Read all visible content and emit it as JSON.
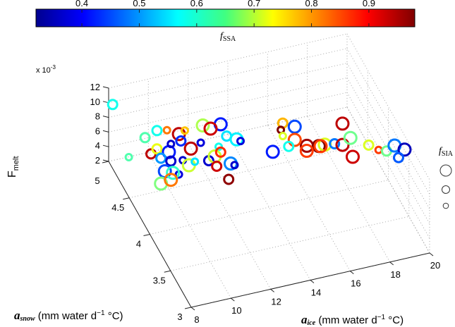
{
  "chart_data": {
    "type": "scatter",
    "projection": "3d",
    "title": "",
    "x": {
      "label_var": "a",
      "label_sub": "ice",
      "label_units": " (mm water d",
      "label_exp": "−1",
      "label_tail": " °C)",
      "range": [
        8,
        20
      ],
      "ticks": [
        "8",
        "10",
        "12",
        "14",
        "16",
        "18",
        "20"
      ],
      "tick_values": [
        8,
        10,
        12,
        14,
        16,
        18,
        20
      ]
    },
    "y": {
      "label_var": "a",
      "label_sub": "snow",
      "label_units": " (mm water d",
      "label_exp": "−1",
      "label_tail": " °C)",
      "range": [
        3,
        5
      ],
      "ticks": [
        "3",
        "3.5",
        "4",
        "4.5",
        "5"
      ],
      "tick_values": [
        3,
        3.5,
        4,
        4.5,
        5
      ]
    },
    "z": {
      "label_main": "F",
      "label_sub": "melt",
      "range": [
        2,
        12
      ],
      "ticks": [
        "2",
        "4",
        "6",
        "8",
        "10",
        "12"
      ],
      "tick_values": [
        2,
        4,
        6,
        8,
        10,
        12
      ],
      "multiplier_prefix": "x 10",
      "multiplier_exp": "-3"
    },
    "colorbar": {
      "label_var": "f",
      "label_sub": "SSA",
      "range": [
        0.32,
        0.98
      ],
      "ticks": [
        "0.4",
        "0.5",
        "0.6",
        "0.7",
        "0.8",
        "0.9"
      ],
      "tick_values": [
        0.4,
        0.5,
        0.6,
        0.7,
        0.8,
        0.9
      ],
      "colormap": "jet",
      "placement": "top"
    },
    "size_legend": {
      "label_var": "f",
      "label_sub": "SIA",
      "placement": "right",
      "levels": [
        "large",
        "medium",
        "small"
      ]
    },
    "grid": true,
    "points_columns": [
      "a_ice",
      "a_snow",
      "F_melt_e3",
      "f_SSA",
      "f_SIA_size"
    ],
    "points": [
      [
        8.1,
        4.95,
        10.2,
        0.58,
        2
      ],
      [
        9.0,
        4.6,
        8.6,
        0.62,
        2
      ],
      [
        9.6,
        4.6,
        9.2,
        0.58,
        2
      ],
      [
        10.0,
        4.55,
        9.5,
        0.82,
        1
      ],
      [
        10.6,
        4.55,
        8.6,
        0.94,
        3
      ],
      [
        10.9,
        4.55,
        8.9,
        0.77,
        1
      ],
      [
        11.7,
        4.5,
        9.6,
        0.68,
        3
      ],
      [
        12.6,
        4.5,
        9.2,
        0.42,
        3
      ],
      [
        12.3,
        4.6,
        7.8,
        0.93,
        3
      ],
      [
        12.9,
        4.5,
        7.4,
        0.55,
        2
      ],
      [
        13.3,
        4.45,
        7.2,
        0.56,
        3
      ],
      [
        13.6,
        4.5,
        6.3,
        0.38,
        1
      ],
      [
        9.3,
        4.6,
        6.2,
        0.94,
        2
      ],
      [
        9.6,
        4.6,
        6.7,
        0.72,
        2
      ],
      [
        10.2,
        4.6,
        5.9,
        0.42,
        3
      ],
      [
        10.2,
        4.55,
        7.5,
        0.37,
        1
      ],
      [
        10.7,
        4.55,
        7.6,
        0.43,
        2
      ],
      [
        11.1,
        4.5,
        6.8,
        0.94,
        3
      ],
      [
        11.6,
        4.5,
        7.3,
        0.38,
        1
      ],
      [
        12.5,
        4.5,
        6.2,
        0.58,
        1
      ],
      [
        9.8,
        4.6,
        5.3,
        0.5,
        2
      ],
      [
        10.3,
        4.6,
        4.6,
        0.37,
        2
      ],
      [
        10.8,
        4.55,
        4.9,
        0.37,
        1
      ],
      [
        11.0,
        4.5,
        4.6,
        0.7,
        3
      ],
      [
        11.3,
        4.5,
        4.9,
        0.55,
        1
      ],
      [
        12.0,
        4.5,
        4.6,
        0.37,
        2
      ],
      [
        12.3,
        4.5,
        5.0,
        0.7,
        3
      ],
      [
        12.6,
        4.5,
        5.4,
        0.87,
        2
      ],
      [
        10.0,
        4.6,
        3.4,
        0.45,
        3
      ],
      [
        10.6,
        4.55,
        3.1,
        0.38,
        1
      ],
      [
        10.3,
        4.55,
        3.5,
        0.6,
        3
      ],
      [
        8.6,
        4.8,
        4.2,
        0.62,
        1
      ],
      [
        9.7,
        4.55,
        2.4,
        0.65,
        3
      ],
      [
        10.2,
        4.55,
        2.6,
        0.82,
        3
      ],
      [
        12.4,
        4.5,
        3.6,
        0.93,
        2
      ],
      [
        13.0,
        4.45,
        4.1,
        0.49,
        3
      ],
      [
        13.3,
        4.5,
        3.2,
        0.37,
        1
      ],
      [
        12.9,
        4.45,
        2.0,
        0.97,
        2
      ],
      [
        15.1,
        4.2,
        10.8,
        0.78,
        2
      ],
      [
        14.9,
        4.15,
        10.5,
        0.98,
        1
      ],
      [
        15.6,
        4.15,
        10.5,
        0.45,
        3
      ],
      [
        15.0,
        4.15,
        9.6,
        0.71,
        1
      ],
      [
        17.9,
        4.1,
        10.0,
        0.94,
        3
      ],
      [
        15.9,
        4.0,
        9.2,
        0.96,
        3
      ],
      [
        16.5,
        4.0,
        8.8,
        0.99,
        3
      ],
      [
        15.6,
        4.15,
        8.7,
        0.85,
        3
      ],
      [
        16.8,
        4.0,
        8.8,
        0.71,
        3
      ],
      [
        18.8,
        3.9,
        8.5,
        0.71,
        2
      ],
      [
        19.2,
        3.85,
        8.1,
        0.86,
        1
      ],
      [
        19.6,
        3.85,
        7.7,
        0.64,
        2
      ],
      [
        18.0,
        3.9,
        7.4,
        0.93,
        3
      ],
      [
        15.3,
        4.15,
        8.0,
        0.58,
        2
      ],
      [
        14.6,
        4.2,
        7.2,
        0.42,
        3
      ],
      [
        16.1,
        4.1,
        7.4,
        0.86,
        3
      ],
      [
        16.8,
        4.1,
        7.6,
        0.86,
        3
      ],
      [
        17.5,
        4.1,
        7.5,
        0.48,
        2
      ],
      [
        17.9,
        4.1,
        7.1,
        0.94,
        3
      ],
      [
        18.3,
        4.1,
        7.8,
        0.64,
        3
      ],
      [
        20.0,
        3.85,
        8.2,
        0.48,
        3
      ],
      [
        20.4,
        3.8,
        7.9,
        0.36,
        3
      ],
      [
        20.1,
        3.8,
        7.0,
        0.46,
        2
      ]
    ]
  }
}
